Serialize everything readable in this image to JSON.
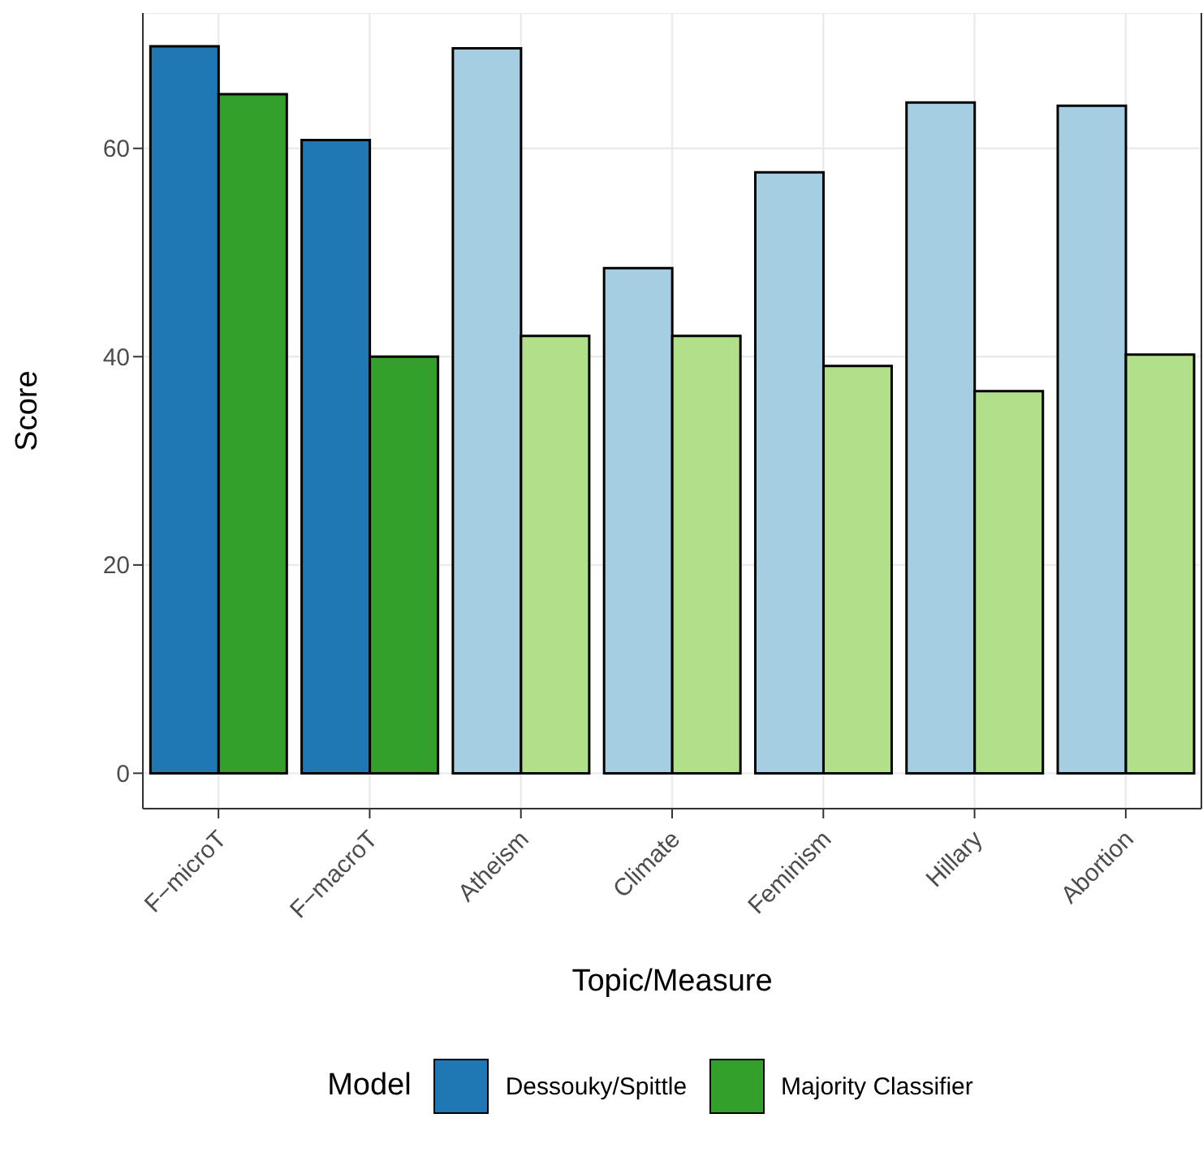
{
  "chart_data": {
    "type": "bar",
    "xlabel": "Topic/Measure",
    "ylabel": "Score",
    "legend_title": "Model",
    "categories": [
      "F−microT",
      "F−macroT",
      "Atheism",
      "Climate",
      "Feminism",
      "Hillary",
      "Abortion"
    ],
    "series": [
      {
        "name": "Dessouky/Spittle",
        "color": "#1f78b4",
        "colors": [
          "#1f78b4",
          "#1f78b4",
          "#a6cee3",
          "#a6cee3",
          "#a6cee3",
          "#a6cee3",
          "#a6cee3"
        ],
        "values": [
          69.8,
          60.8,
          69.6,
          48.5,
          57.7,
          64.4,
          64.1
        ]
      },
      {
        "name": "Majority Classifier",
        "color": "#33a02c",
        "colors": [
          "#33a02c",
          "#33a02c",
          "#b2df8a",
          "#b2df8a",
          "#b2df8a",
          "#b2df8a",
          "#b2df8a"
        ],
        "values": [
          65.2,
          40.0,
          42.0,
          42.0,
          39.1,
          36.7,
          40.2
        ]
      }
    ],
    "ylim": [
      -3.4,
      73
    ],
    "yticks": [
      0,
      20,
      40,
      60
    ],
    "grid": true,
    "legend": "bottom"
  }
}
